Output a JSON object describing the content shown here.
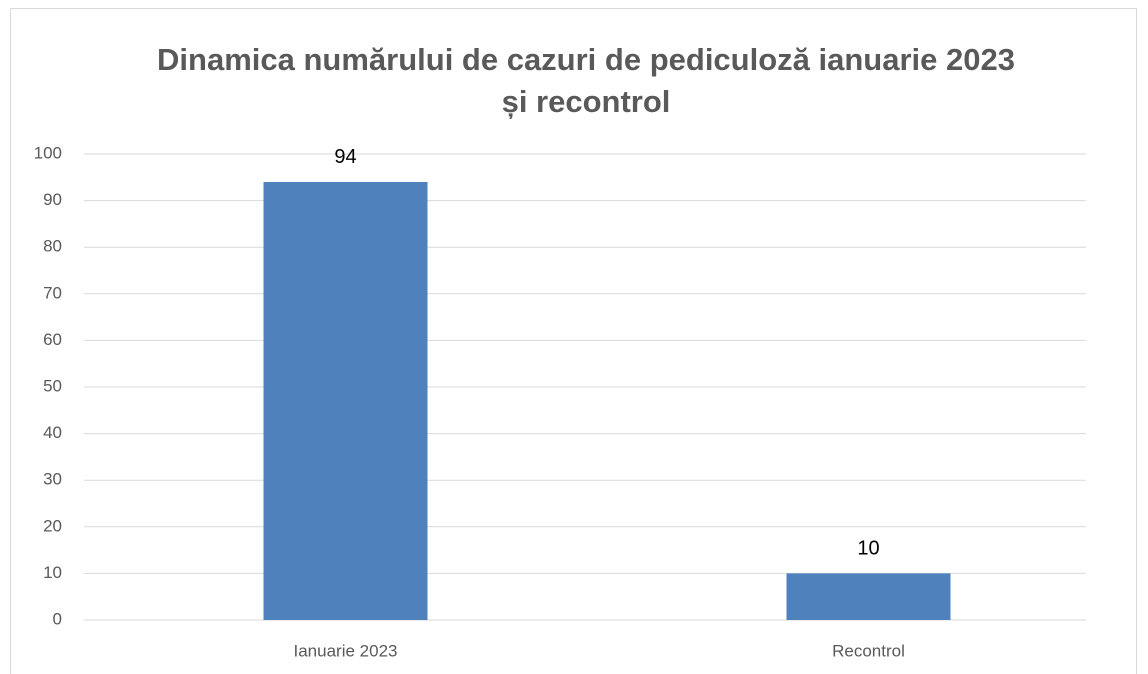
{
  "chart_data": {
    "type": "bar",
    "title": [
      "Dinamica numărului de cazuri de pediculoză ianuarie 2023",
      "și recontrol"
    ],
    "categories": [
      "Ianuarie 2023",
      "Recontrol"
    ],
    "values": [
      94,
      10
    ],
    "color": "#4f81bd",
    "ylim": [
      0,
      100
    ],
    "yticks": [
      0,
      10,
      20,
      30,
      40,
      50,
      60,
      70,
      80,
      90,
      100
    ],
    "grid": true
  }
}
